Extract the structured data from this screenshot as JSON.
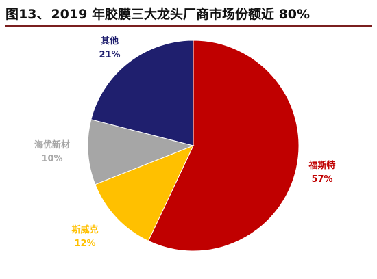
{
  "title_prefix": "图13、",
  "title_text": "2019 年胶膜三大龙头厂商市场份额近 80%",
  "chart_data": {
    "type": "pie",
    "title": "2019 年胶膜三大龙头厂商市场份额近 80%",
    "unit": "%",
    "start": "12 o'clock",
    "direction": "clockwise",
    "slices": [
      {
        "name": "福斯特",
        "value": 57,
        "label": "57%",
        "color": "#c00000"
      },
      {
        "name": "斯威克",
        "value": 12,
        "label": "12%",
        "color": "#ffc000"
      },
      {
        "name": "海优新材",
        "value": 10,
        "label": "10%",
        "color": "#a6a6a6"
      },
      {
        "name": "其他",
        "value": 21,
        "label": "21%",
        "color": "#1f1f6e"
      }
    ]
  }
}
